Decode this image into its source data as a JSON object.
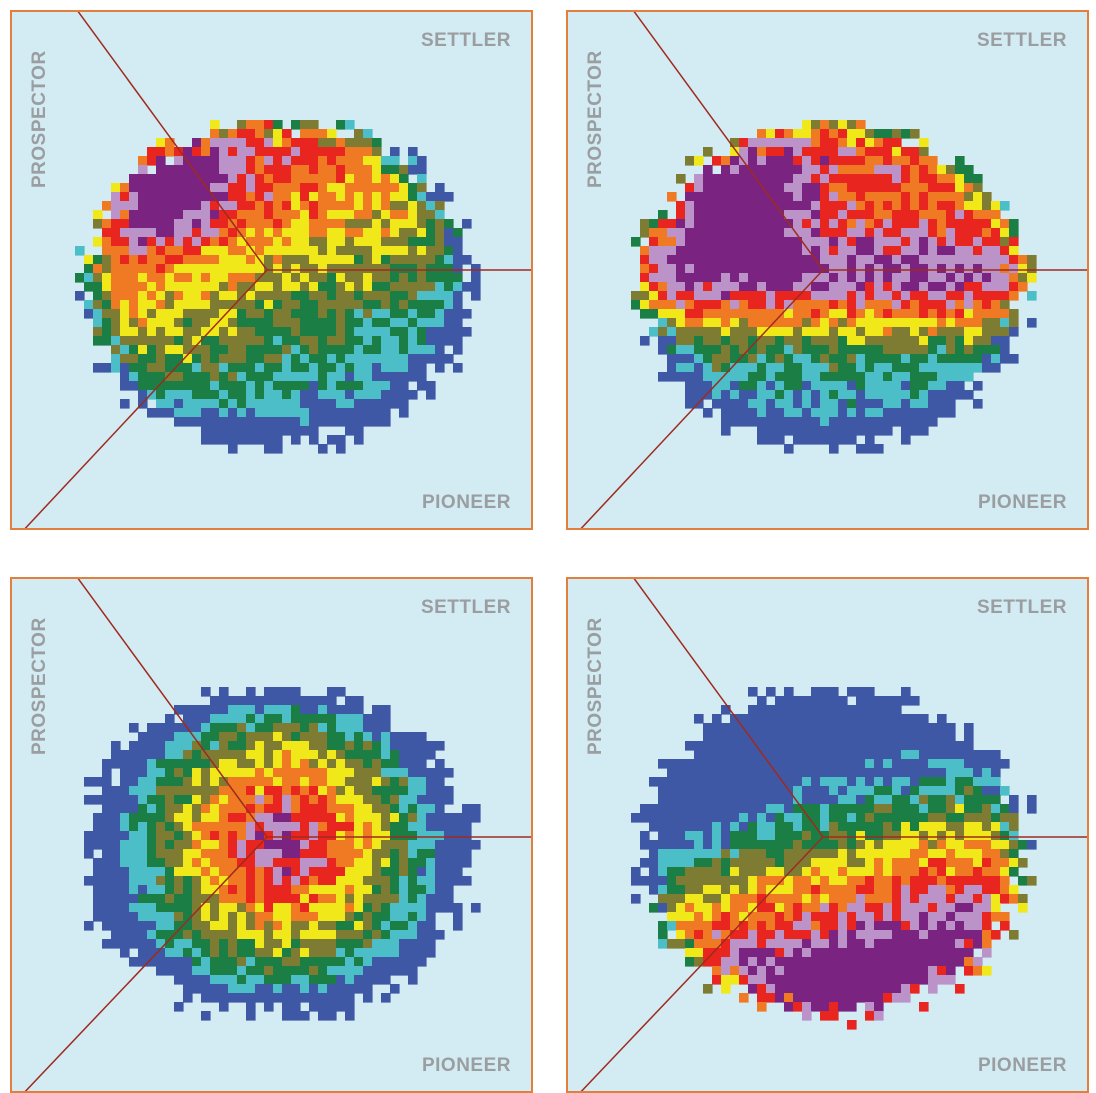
{
  "labels": {
    "settler": "SETTLER",
    "pioneer": "PIONEER",
    "prospector": "PROSPECTOR"
  },
  "colors": {
    "background": "#d3ebf3",
    "frame": "#e37f3d",
    "boundary_lines": "#9f2a1e",
    "label": "#9a9ea0",
    "levels": [
      "#3f58a6",
      "#4bbec8",
      "#1a7e45",
      "#7e7c33",
      "#f1e81a",
      "#f07a24",
      "#e8261f",
      "#bb93c9",
      "#7a2380"
    ]
  },
  "panels": [
    {
      "name": "panel-1",
      "layout": [
        "pioneer-low",
        "settler-mid",
        "prospector-high"
      ]
    },
    {
      "name": "panel-2",
      "layout": [
        "prospector-high",
        "center-high"
      ]
    },
    {
      "name": "panel-3",
      "layout": [
        "center-high",
        "edges-low"
      ]
    },
    {
      "name": "panel-4",
      "layout": [
        "pioneer-high",
        "settler-mid",
        "prospector-low"
      ]
    }
  ]
}
